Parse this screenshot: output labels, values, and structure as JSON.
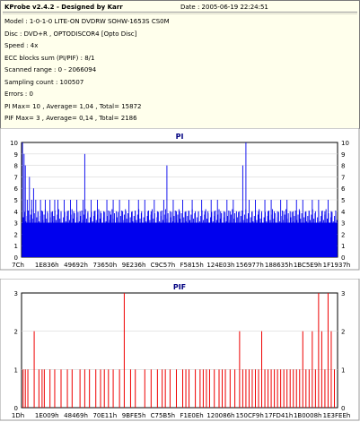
{
  "header": {
    "title": "KProbe v2.4.2 - Designed by Karr",
    "date": "Date : 2005-06-19 22:24:51",
    "lines": [
      "Model : 1-0-1-0 LITE-ON DVDRW SOHW-1653S CS0M",
      "Disc : DVD+R , OPTODISCOR4 [Opto Disc]",
      "Speed : 4x",
      "ECC blocks sum (PI/PIF) : 8/1",
      "Scanned range : 0 - 2066094",
      "Sampling count : 100507",
      "Errors : 0",
      "PI Max= 10 , Average= 1,04 , Total= 15872",
      "PIF Max= 3 , Average= 0,14 , Total= 2186"
    ]
  },
  "chart_data": [
    {
      "type": "bar",
      "title": "PI",
      "ylim": [
        0,
        10
      ],
      "yticks": [
        "0",
        "1",
        "2",
        "3",
        "4",
        "5",
        "6",
        "7",
        "8",
        "9",
        "10"
      ],
      "xticks": [
        "7Ch",
        "1E836h",
        "49692h",
        "73650h",
        "9E236h",
        "C9C57h",
        "F5815h",
        "124E03h",
        "156977h",
        "188635h",
        "1BC5E9h",
        "1F1937h"
      ],
      "color": "#0000ee",
      "baseline": 3,
      "spikes": [
        [
          0.003,
          10
        ],
        [
          0.008,
          9
        ],
        [
          0.012,
          8
        ],
        [
          0.018,
          5
        ],
        [
          0.025,
          7
        ],
        [
          0.032,
          5
        ],
        [
          0.038,
          6
        ],
        [
          0.045,
          5
        ],
        [
          0.052,
          4
        ],
        [
          0.06,
          5
        ],
        [
          0.067,
          4
        ],
        [
          0.075,
          5
        ],
        [
          0.082,
          4
        ],
        [
          0.09,
          5
        ],
        [
          0.098,
          4
        ],
        [
          0.105,
          5
        ],
        [
          0.115,
          5
        ],
        [
          0.125,
          4
        ],
        [
          0.135,
          5
        ],
        [
          0.145,
          4
        ],
        [
          0.155,
          5
        ],
        [
          0.165,
          4
        ],
        [
          0.175,
          5
        ],
        [
          0.185,
          4
        ],
        [
          0.195,
          5
        ],
        [
          0.2,
          9
        ],
        [
          0.21,
          4
        ],
        [
          0.22,
          5
        ],
        [
          0.23,
          4
        ],
        [
          0.24,
          5
        ],
        [
          0.25,
          4
        ],
        [
          0.26,
          4
        ],
        [
          0.27,
          5
        ],
        [
          0.28,
          4
        ],
        [
          0.29,
          5
        ],
        [
          0.3,
          4
        ],
        [
          0.31,
          5
        ],
        [
          0.32,
          4
        ],
        [
          0.33,
          4
        ],
        [
          0.34,
          5
        ],
        [
          0.35,
          4
        ],
        [
          0.36,
          4
        ],
        [
          0.37,
          5
        ],
        [
          0.38,
          4
        ],
        [
          0.39,
          5
        ],
        [
          0.4,
          4
        ],
        [
          0.41,
          4
        ],
        [
          0.42,
          5
        ],
        [
          0.43,
          4
        ],
        [
          0.44,
          4
        ],
        [
          0.45,
          5
        ],
        [
          0.46,
          8
        ],
        [
          0.47,
          4
        ],
        [
          0.48,
          5
        ],
        [
          0.49,
          4
        ],
        [
          0.5,
          4
        ],
        [
          0.51,
          5
        ],
        [
          0.52,
          4
        ],
        [
          0.53,
          4
        ],
        [
          0.54,
          5
        ],
        [
          0.55,
          4
        ],
        [
          0.56,
          4
        ],
        [
          0.57,
          5
        ],
        [
          0.58,
          4
        ],
        [
          0.59,
          4
        ],
        [
          0.6,
          5
        ],
        [
          0.61,
          4
        ],
        [
          0.62,
          5
        ],
        [
          0.63,
          4
        ],
        [
          0.64,
          4
        ],
        [
          0.65,
          5
        ],
        [
          0.66,
          4
        ],
        [
          0.67,
          5
        ],
        [
          0.68,
          4
        ],
        [
          0.69,
          4
        ],
        [
          0.7,
          8
        ],
        [
          0.71,
          10
        ],
        [
          0.72,
          5
        ],
        [
          0.73,
          4
        ],
        [
          0.74,
          5
        ],
        [
          0.75,
          4
        ],
        [
          0.76,
          4
        ],
        [
          0.77,
          5
        ],
        [
          0.78,
          4
        ],
        [
          0.79,
          5
        ],
        [
          0.8,
          4
        ],
        [
          0.81,
          4
        ],
        [
          0.82,
          5
        ],
        [
          0.83,
          4
        ],
        [
          0.84,
          5
        ],
        [
          0.85,
          4
        ],
        [
          0.86,
          4
        ],
        [
          0.87,
          5
        ],
        [
          0.88,
          4
        ],
        [
          0.89,
          5
        ],
        [
          0.9,
          4
        ],
        [
          0.91,
          4
        ],
        [
          0.92,
          5
        ],
        [
          0.93,
          4
        ],
        [
          0.94,
          5
        ],
        [
          0.95,
          4
        ],
        [
          0.96,
          4
        ],
        [
          0.97,
          5
        ],
        [
          0.98,
          4
        ]
      ]
    },
    {
      "type": "bar",
      "title": "PIF",
      "ylim": [
        0,
        3
      ],
      "yticks": [
        "0",
        "1",
        "2",
        "3"
      ],
      "xticks": [
        "1Dh",
        "1E009h",
        "48469h",
        "70E11h",
        "9BFE5h",
        "C75B5h",
        "F1E0Eh",
        "120086h",
        "150CF9h",
        "17FD41h",
        "1B0008h",
        "1E3FEEh"
      ],
      "color": "#ee0000",
      "values": [
        [
          0.005,
          1
        ],
        [
          0.012,
          1
        ],
        [
          0.02,
          1
        ],
        [
          0.04,
          2
        ],
        [
          0.055,
          1
        ],
        [
          0.065,
          1
        ],
        [
          0.072,
          1
        ],
        [
          0.09,
          1
        ],
        [
          0.105,
          1
        ],
        [
          0.125,
          1
        ],
        [
          0.145,
          1
        ],
        [
          0.16,
          1
        ],
        [
          0.185,
          1
        ],
        [
          0.2,
          1
        ],
        [
          0.215,
          1
        ],
        [
          0.235,
          1
        ],
        [
          0.25,
          1
        ],
        [
          0.262,
          1
        ],
        [
          0.275,
          1
        ],
        [
          0.29,
          1
        ],
        [
          0.31,
          1
        ],
        [
          0.325,
          3
        ],
        [
          0.345,
          1
        ],
        [
          0.36,
          1
        ],
        [
          0.39,
          1
        ],
        [
          0.41,
          1
        ],
        [
          0.43,
          1
        ],
        [
          0.445,
          1
        ],
        [
          0.455,
          1
        ],
        [
          0.47,
          1
        ],
        [
          0.49,
          1
        ],
        [
          0.51,
          1
        ],
        [
          0.52,
          1
        ],
        [
          0.53,
          1
        ],
        [
          0.55,
          1
        ],
        [
          0.565,
          1
        ],
        [
          0.575,
          1
        ],
        [
          0.585,
          1
        ],
        [
          0.595,
          1
        ],
        [
          0.61,
          1
        ],
        [
          0.625,
          1
        ],
        [
          0.635,
          1
        ],
        [
          0.645,
          1
        ],
        [
          0.66,
          1
        ],
        [
          0.675,
          1
        ],
        [
          0.69,
          2
        ],
        [
          0.7,
          1
        ],
        [
          0.71,
          1
        ],
        [
          0.72,
          1
        ],
        [
          0.73,
          1
        ],
        [
          0.74,
          1
        ],
        [
          0.75,
          1
        ],
        [
          0.76,
          2
        ],
        [
          0.77,
          1
        ],
        [
          0.78,
          1
        ],
        [
          0.79,
          1
        ],
        [
          0.8,
          1
        ],
        [
          0.81,
          1
        ],
        [
          0.82,
          1
        ],
        [
          0.83,
          1
        ],
        [
          0.84,
          1
        ],
        [
          0.85,
          1
        ],
        [
          0.86,
          1
        ],
        [
          0.87,
          1
        ],
        [
          0.88,
          1
        ],
        [
          0.89,
          2
        ],
        [
          0.9,
          1
        ],
        [
          0.91,
          1
        ],
        [
          0.92,
          2
        ],
        [
          0.93,
          1
        ],
        [
          0.94,
          3
        ],
        [
          0.95,
          2
        ],
        [
          0.96,
          1
        ],
        [
          0.97,
          3
        ],
        [
          0.98,
          2
        ],
        [
          0.99,
          1
        ]
      ]
    }
  ]
}
